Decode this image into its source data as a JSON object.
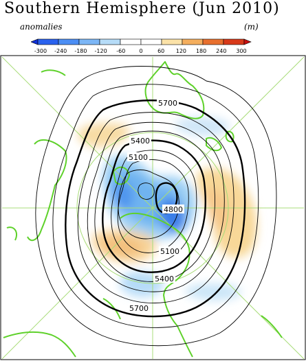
{
  "title": "Southern Hemisphere (Jun 2010)",
  "colorbar": {
    "left_label": "anomalies",
    "right_label": "(m)",
    "ticks": [
      "-300",
      "-240",
      "-180",
      "-120",
      "-60",
      "0",
      "60",
      "120",
      "180",
      "240",
      "300"
    ],
    "colors": [
      "#1030d8",
      "#2a62ee",
      "#4c8ef4",
      "#7cb6f6",
      "#b6dcf8",
      "#ffffff",
      "#ffffff",
      "#fbe2a8",
      "#f4ae5e",
      "#e8702e",
      "#d83a1a",
      "#c81010"
    ]
  },
  "map": {
    "contour_labels": [
      "5700",
      "5400",
      "5100",
      "4800",
      "5100",
      "5400",
      "5700"
    ],
    "contour_color": "#000000",
    "coast_color": "#5ed12a",
    "gridline_color": "#a8dc78"
  }
}
